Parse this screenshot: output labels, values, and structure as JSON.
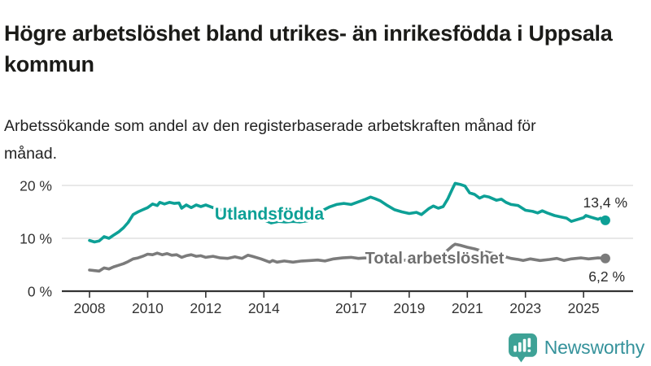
{
  "chart_data": {
    "type": "line",
    "title": "Högre arbetslöshet bland utrikes- än inrikesfödda i Uppsala kommun",
    "subtitle": "Arbetssökande som andel av den registerbaserade arbetskraften månad för månad.",
    "unit": "%",
    "x_axis": {
      "range": [
        2007.0,
        2026.7
      ],
      "ticks": [
        2008,
        2010,
        2012,
        2014,
        2017,
        2019,
        2021,
        2023,
        2025
      ]
    },
    "y_axis": {
      "range": [
        0,
        21.5
      ],
      "ticks": [
        {
          "value": 0,
          "label": "0 %"
        },
        {
          "value": 10,
          "label": "10 %"
        },
        {
          "value": 20,
          "label": "20 %"
        }
      ],
      "grid": true
    },
    "series": [
      {
        "id": "utlandsfodda",
        "name": "Utlandsfödda",
        "color": "#0DA096",
        "label_color": "#0DA096",
        "end_label": "13,4 %",
        "end_value": 13.4,
        "points": [
          [
            2008.0,
            9.6
          ],
          [
            2008.17,
            9.3
          ],
          [
            2008.33,
            9.5
          ],
          [
            2008.5,
            10.3
          ],
          [
            2008.67,
            10.0
          ],
          [
            2008.83,
            10.6
          ],
          [
            2009.0,
            11.2
          ],
          [
            2009.17,
            12.0
          ],
          [
            2009.33,
            13.0
          ],
          [
            2009.5,
            14.5
          ],
          [
            2009.67,
            15.0
          ],
          [
            2009.83,
            15.4
          ],
          [
            2010.0,
            15.8
          ],
          [
            2010.17,
            16.5
          ],
          [
            2010.33,
            16.2
          ],
          [
            2010.42,
            16.8
          ],
          [
            2010.58,
            16.5
          ],
          [
            2010.75,
            16.8
          ],
          [
            2010.92,
            16.6
          ],
          [
            2011.08,
            16.7
          ],
          [
            2011.17,
            15.7
          ],
          [
            2011.33,
            16.3
          ],
          [
            2011.5,
            15.8
          ],
          [
            2011.67,
            16.3
          ],
          [
            2011.83,
            16.0
          ],
          [
            2012.0,
            16.3
          ],
          [
            2012.25,
            15.8
          ],
          [
            2012.5,
            15.4
          ],
          [
            2012.75,
            15.1
          ],
          [
            2013.0,
            14.8
          ],
          [
            2013.25,
            14.4
          ],
          [
            2013.5,
            14.1
          ],
          [
            2013.75,
            13.8
          ],
          [
            2014.0,
            13.5
          ],
          [
            2014.25,
            12.9
          ],
          [
            2014.5,
            13.2
          ],
          [
            2014.75,
            13.1
          ],
          [
            2015.0,
            13.2
          ],
          [
            2015.25,
            13.1
          ],
          [
            2015.5,
            13.3
          ],
          [
            2015.75,
            14.0
          ],
          [
            2016.0,
            15.2
          ],
          [
            2016.25,
            15.9
          ],
          [
            2016.5,
            16.4
          ],
          [
            2016.75,
            16.6
          ],
          [
            2017.0,
            16.4
          ],
          [
            2017.25,
            16.9
          ],
          [
            2017.5,
            17.4
          ],
          [
            2017.67,
            17.8
          ],
          [
            2017.83,
            17.5
          ],
          [
            2018.0,
            17.1
          ],
          [
            2018.25,
            16.2
          ],
          [
            2018.5,
            15.4
          ],
          [
            2018.75,
            15.0
          ],
          [
            2019.0,
            14.7
          ],
          [
            2019.25,
            14.9
          ],
          [
            2019.42,
            14.5
          ],
          [
            2019.67,
            15.6
          ],
          [
            2019.83,
            16.1
          ],
          [
            2020.0,
            15.7
          ],
          [
            2020.17,
            16.0
          ],
          [
            2020.33,
            17.5
          ],
          [
            2020.5,
            19.5
          ],
          [
            2020.58,
            20.4
          ],
          [
            2020.75,
            20.2
          ],
          [
            2020.92,
            19.9
          ],
          [
            2021.08,
            18.6
          ],
          [
            2021.25,
            18.3
          ],
          [
            2021.42,
            17.6
          ],
          [
            2021.58,
            18.0
          ],
          [
            2021.75,
            17.8
          ],
          [
            2022.0,
            17.2
          ],
          [
            2022.17,
            17.4
          ],
          [
            2022.33,
            16.8
          ],
          [
            2022.5,
            16.4
          ],
          [
            2022.75,
            16.2
          ],
          [
            2023.0,
            15.3
          ],
          [
            2023.25,
            15.1
          ],
          [
            2023.42,
            14.8
          ],
          [
            2023.58,
            15.2
          ],
          [
            2023.75,
            14.8
          ],
          [
            2024.0,
            14.3
          ],
          [
            2024.25,
            14.0
          ],
          [
            2024.42,
            13.8
          ],
          [
            2024.58,
            13.2
          ],
          [
            2024.75,
            13.5
          ],
          [
            2025.0,
            13.9
          ],
          [
            2025.08,
            14.3
          ],
          [
            2025.25,
            14.0
          ],
          [
            2025.5,
            13.6
          ],
          [
            2025.58,
            13.8
          ],
          [
            2025.75,
            13.4
          ]
        ]
      },
      {
        "id": "total-arbetsloshet",
        "name": "Total arbetslöshet",
        "color": "#7B7B7B",
        "label_color": "#6F6F6F",
        "end_label": "6,2 %",
        "end_value": 6.2,
        "points": [
          [
            2008.0,
            4.0
          ],
          [
            2008.17,
            3.9
          ],
          [
            2008.33,
            3.8
          ],
          [
            2008.5,
            4.4
          ],
          [
            2008.67,
            4.2
          ],
          [
            2008.83,
            4.6
          ],
          [
            2009.0,
            4.9
          ],
          [
            2009.17,
            5.2
          ],
          [
            2009.33,
            5.6
          ],
          [
            2009.5,
            6.1
          ],
          [
            2009.67,
            6.3
          ],
          [
            2009.83,
            6.6
          ],
          [
            2010.0,
            7.0
          ],
          [
            2010.17,
            6.9
          ],
          [
            2010.33,
            7.2
          ],
          [
            2010.5,
            6.9
          ],
          [
            2010.67,
            7.1
          ],
          [
            2010.83,
            6.8
          ],
          [
            2011.0,
            6.9
          ],
          [
            2011.17,
            6.4
          ],
          [
            2011.33,
            6.7
          ],
          [
            2011.5,
            6.9
          ],
          [
            2011.67,
            6.6
          ],
          [
            2011.83,
            6.7
          ],
          [
            2012.0,
            6.4
          ],
          [
            2012.25,
            6.6
          ],
          [
            2012.5,
            6.3
          ],
          [
            2012.75,
            6.2
          ],
          [
            2013.0,
            6.5
          ],
          [
            2013.25,
            6.2
          ],
          [
            2013.45,
            6.8
          ],
          [
            2013.6,
            6.6
          ],
          [
            2013.9,
            6.1
          ],
          [
            2014.2,
            5.5
          ],
          [
            2014.3,
            5.8
          ],
          [
            2014.45,
            5.5
          ],
          [
            2014.7,
            5.7
          ],
          [
            2015.0,
            5.5
          ],
          [
            2015.3,
            5.7
          ],
          [
            2015.6,
            5.8
          ],
          [
            2015.85,
            5.9
          ],
          [
            2016.1,
            5.7
          ],
          [
            2016.4,
            6.1
          ],
          [
            2016.7,
            6.3
          ],
          [
            2017.0,
            6.4
          ],
          [
            2017.25,
            6.2
          ],
          [
            2017.5,
            6.3
          ],
          [
            2017.75,
            6.1
          ],
          [
            2018.0,
            6.2
          ],
          [
            2018.25,
            6.0
          ],
          [
            2018.5,
            6.1
          ],
          [
            2018.75,
            5.9
          ],
          [
            2019.0,
            5.8
          ],
          [
            2019.25,
            5.9
          ],
          [
            2019.5,
            5.8
          ],
          [
            2019.75,
            6.0
          ],
          [
            2020.0,
            6.3
          ],
          [
            2020.25,
            7.4
          ],
          [
            2020.5,
            8.6
          ],
          [
            2020.58,
            8.9
          ],
          [
            2020.75,
            8.7
          ],
          [
            2021.0,
            8.3
          ],
          [
            2021.25,
            8.0
          ],
          [
            2021.5,
            7.6
          ],
          [
            2021.75,
            7.3
          ],
          [
            2022.0,
            7.0
          ],
          [
            2022.25,
            6.6
          ],
          [
            2022.5,
            6.2
          ],
          [
            2022.75,
            6.0
          ],
          [
            2022.92,
            5.8
          ],
          [
            2023.17,
            6.1
          ],
          [
            2023.5,
            5.8
          ],
          [
            2023.83,
            6.0
          ],
          [
            2024.08,
            6.2
          ],
          [
            2024.33,
            5.8
          ],
          [
            2024.58,
            6.1
          ],
          [
            2024.92,
            6.3
          ],
          [
            2025.17,
            6.1
          ],
          [
            2025.5,
            6.3
          ],
          [
            2025.75,
            6.2
          ]
        ]
      }
    ],
    "colors": {
      "gridline": "#D9D9D9",
      "axis_line": "#333333",
      "axis_text": "#333333",
      "value_label_text": "#2B2B2B"
    }
  },
  "footer": {
    "brand": "Newsworthy",
    "brand_icon": "newsworthy-speech-bubble-chart-icon",
    "brand_text_color": "#35929B",
    "brand_icon_color": "#3EA296"
  }
}
